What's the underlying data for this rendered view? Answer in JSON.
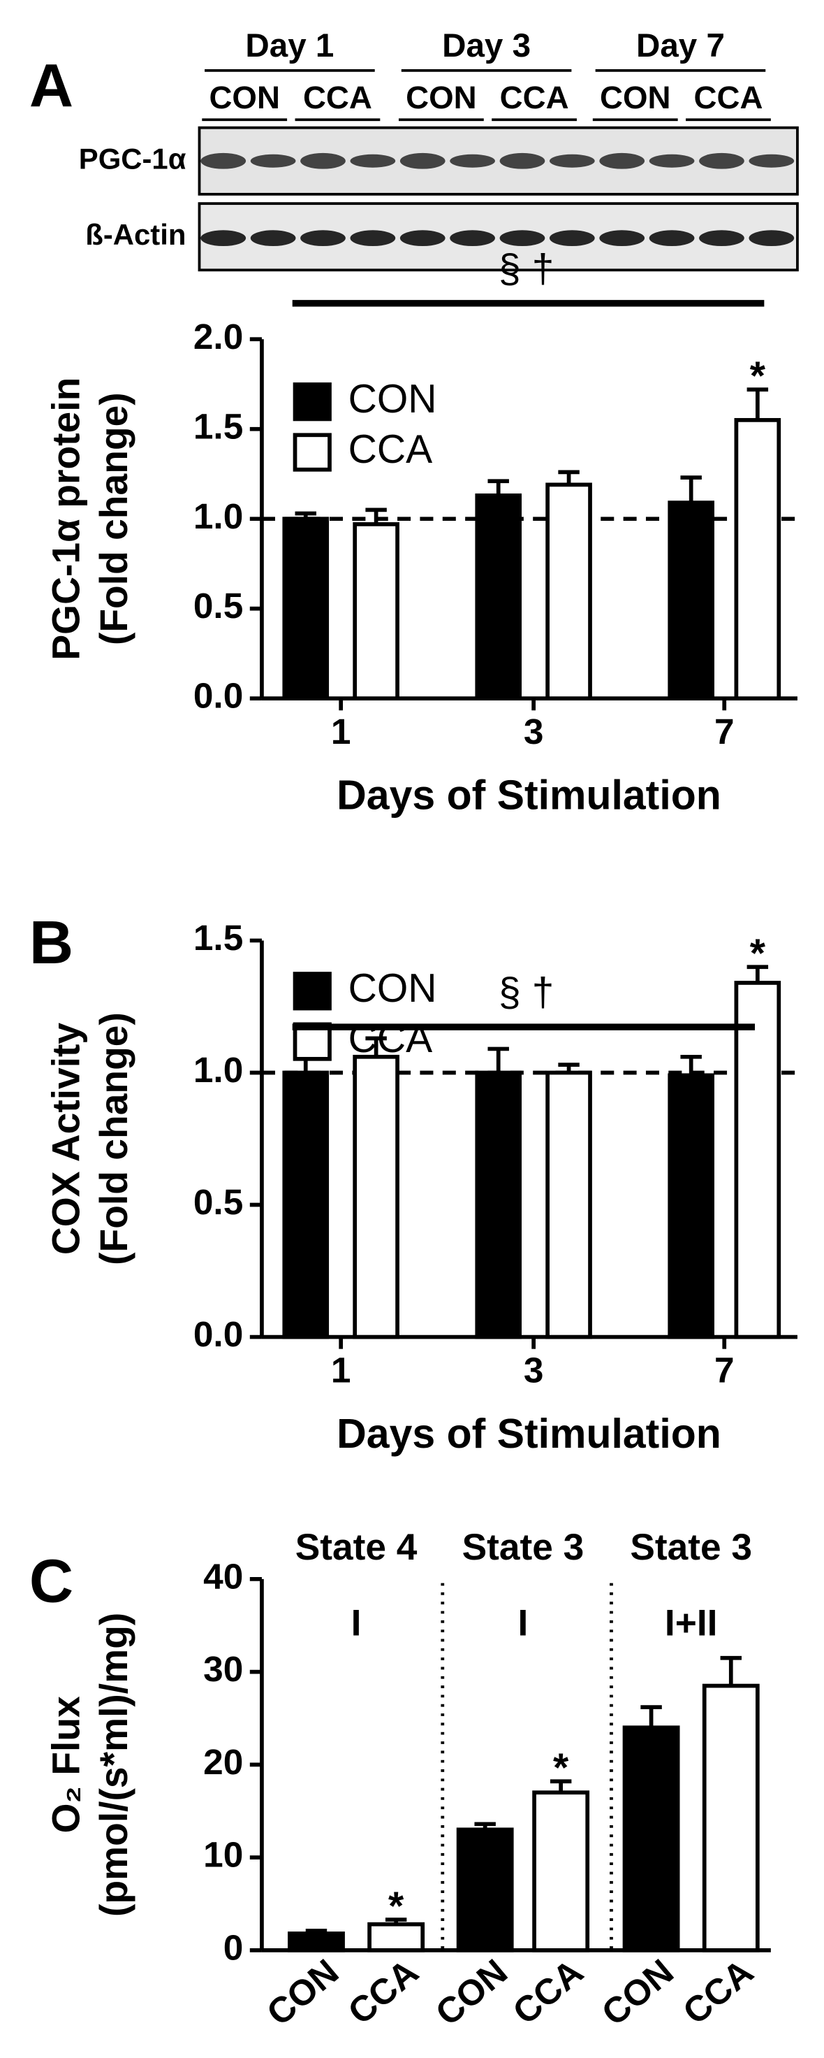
{
  "panels": [
    "A",
    "B",
    "C"
  ],
  "blot": {
    "days": [
      "Day 1",
      "Day 3",
      "Day 7"
    ],
    "conditions": [
      "CON",
      "CCA"
    ],
    "rows": [
      "PGC-1α",
      "ß-Actin"
    ]
  },
  "chart_data": [
    {
      "type": "bar",
      "categories": [
        "1",
        "3",
        "7"
      ],
      "xlabel": "Days of Stimulation",
      "ylabel": [
        "PGC-1α protein",
        "(Fold change)"
      ],
      "series": [
        {
          "name": "CON",
          "color": "#000000",
          "values": [
            1.0,
            1.13,
            1.09
          ],
          "errors": [
            0.03,
            0.08,
            0.14
          ]
        },
        {
          "name": "CCA",
          "color": "#ffffff",
          "values": [
            0.97,
            1.19,
            1.55
          ],
          "errors": [
            0.08,
            0.07,
            0.17
          ]
        }
      ],
      "ylim": [
        0,
        2.0
      ],
      "yticks": [
        {
          "value": 0,
          "label": "0.0"
        },
        {
          "value": 0.5,
          "label": "0.5"
        },
        {
          "value": 1.0,
          "label": "1.0"
        },
        {
          "value": 1.5,
          "label": "1.5"
        },
        {
          "value": 2.0,
          "label": "2.0"
        }
      ],
      "reference_line": 1.0,
      "legend": true,
      "significance": "§ †",
      "annotations": [
        {
          "text": "*",
          "category": 2,
          "series": 1
        }
      ]
    },
    {
      "type": "bar",
      "categories": [
        "1",
        "3",
        "7"
      ],
      "xlabel": "Days of Stimulation",
      "ylabel": [
        "COX Activity",
        "(Fold change)"
      ],
      "series": [
        {
          "name": "CON",
          "color": "#000000",
          "values": [
            1.0,
            1.0,
            0.99
          ],
          "errors": [
            0.07,
            0.09,
            0.07
          ]
        },
        {
          "name": "CCA",
          "color": "#ffffff",
          "values": [
            1.06,
            1.0,
            1.34
          ],
          "errors": [
            0.07,
            0.03,
            0.06
          ]
        }
      ],
      "ylim": [
        0,
        1.5
      ],
      "yticks": [
        {
          "value": 0,
          "label": "0.0"
        },
        {
          "value": 0.5,
          "label": "0.5"
        },
        {
          "value": 1.0,
          "label": "1.0"
        },
        {
          "value": 1.5,
          "label": "1.5"
        }
      ],
      "reference_line": 1.0,
      "legend": true,
      "significance": "§ †",
      "annotations": [
        {
          "text": "*",
          "category": 2,
          "series": 1
        }
      ]
    },
    {
      "type": "bar",
      "categories": [
        "State 4",
        "State 3",
        "State 3"
      ],
      "category_sublabels": [
        "I",
        "I",
        "I+II"
      ],
      "ylabel": [
        "O₂ Flux",
        "(pmol/(s*ml)/mg)"
      ],
      "series": [
        {
          "name": "CON",
          "color": "#000000",
          "values": [
            1.8,
            13,
            24
          ],
          "errors": [
            0.3,
            0.6,
            2.2
          ]
        },
        {
          "name": "CCA",
          "color": "#ffffff",
          "values": [
            2.8,
            17,
            28.5
          ],
          "errors": [
            0.5,
            1.2,
            3
          ]
        }
      ],
      "ylim": [
        0,
        40
      ],
      "yticks": [
        0,
        10,
        20,
        30,
        40
      ],
      "legend": false,
      "separators": true,
      "series_tick_labels": true,
      "annotations": [
        {
          "text": "*",
          "category": 0,
          "series": 1
        },
        {
          "text": "*",
          "category": 1,
          "series": 1
        }
      ]
    }
  ]
}
